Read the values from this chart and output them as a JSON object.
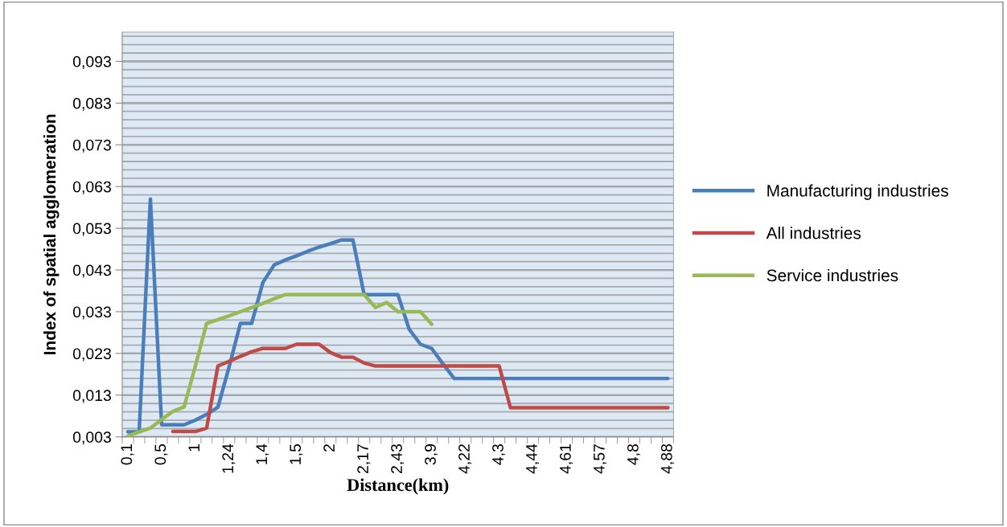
{
  "chart_data": {
    "type": "line",
    "xlabel": "Distance(km)",
    "ylabel": "Index of spatial agglomeration",
    "categories": [
      "0,1",
      null,
      null,
      "0,5",
      null,
      null,
      "1",
      null,
      null,
      "1,24",
      null,
      null,
      "1,4",
      null,
      null,
      "1,5",
      null,
      null,
      "2",
      null,
      null,
      "2,17",
      null,
      null,
      "2,43",
      null,
      null,
      "3,9",
      null,
      null,
      "4,22",
      null,
      null,
      "4,3",
      null,
      null,
      "4,44",
      null,
      null,
      "4,61",
      null,
      null,
      "4,57",
      null,
      null,
      "4,8",
      null,
      null,
      "4,88"
    ],
    "series": [
      {
        "name": "Manufacturing industries",
        "color": "#4a7ebb",
        "values": [
          0.0042,
          0.0042,
          0.06,
          0.0059,
          0.0059,
          0.0059,
          0.007,
          0.0084,
          0.0101,
          0.0198,
          0.0302,
          0.0302,
          0.04,
          0.0442,
          0.0454,
          0.0464,
          0.0475,
          0.0485,
          0.0493,
          0.0502,
          0.0502,
          0.0371,
          0.0371,
          0.0371,
          0.0371,
          0.0288,
          0.0252,
          0.0242,
          0.0205,
          0.017,
          0.017,
          0.017,
          0.017,
          0.017,
          0.017,
          0.017,
          0.017,
          0.017,
          0.017,
          0.017,
          0.017,
          0.017,
          0.017,
          0.017,
          0.017,
          0.017,
          0.017,
          0.017,
          0.017
        ]
      },
      {
        "name": "All industries",
        "color": "#be4b48",
        "values": [
          null,
          null,
          null,
          null,
          0.0043,
          0.0043,
          0.0043,
          0.0051,
          0.02,
          0.0211,
          0.0223,
          0.0234,
          0.0242,
          0.0242,
          0.0242,
          0.0252,
          0.0252,
          0.0252,
          0.0232,
          0.0221,
          0.0221,
          0.0207,
          0.02,
          0.02,
          0.02,
          0.02,
          0.02,
          0.02,
          0.02,
          0.02,
          0.02,
          0.02,
          0.02,
          0.02,
          0.01,
          0.01,
          0.01,
          0.01,
          0.01,
          0.01,
          0.01,
          0.01,
          0.01,
          0.01,
          0.01,
          0.01,
          0.01,
          0.01,
          0.01
        ]
      },
      {
        "name": "Service industries",
        "color": "#98b954",
        "values": [
          0.0032,
          0.0042,
          0.0051,
          0.0072,
          0.0091,
          0.0102,
          0.02,
          0.0302,
          0.0311,
          0.032,
          0.033,
          0.034,
          0.035,
          0.0361,
          0.0371,
          0.0371,
          0.0371,
          0.0371,
          0.0371,
          0.0371,
          0.0371,
          0.0371,
          0.034,
          0.0352,
          0.033,
          0.033,
          0.033,
          0.03,
          null,
          null,
          null,
          null,
          null,
          null,
          null,
          null,
          null,
          null,
          null,
          null,
          null,
          null,
          null,
          null,
          null,
          null,
          null,
          null,
          null
        ]
      }
    ],
    "ylim": [
      0.003,
      0.1
    ],
    "yticks": [
      {
        "value": 0.003,
        "label": "0,003"
      },
      {
        "value": 0.013,
        "label": "0,013"
      },
      {
        "value": 0.023,
        "label": "0,023"
      },
      {
        "value": 0.033,
        "label": "0,033"
      },
      {
        "value": 0.043,
        "label": "0,043"
      },
      {
        "value": 0.053,
        "label": "0,053"
      },
      {
        "value": 0.063,
        "label": "0,063"
      },
      {
        "value": 0.073,
        "label": "0,073"
      },
      {
        "value": 0.083,
        "label": "0,083"
      },
      {
        "value": 0.093,
        "label": "0,093"
      }
    ],
    "grid": "y",
    "legend": "right",
    "marker": "none",
    "line_style": "solid"
  }
}
